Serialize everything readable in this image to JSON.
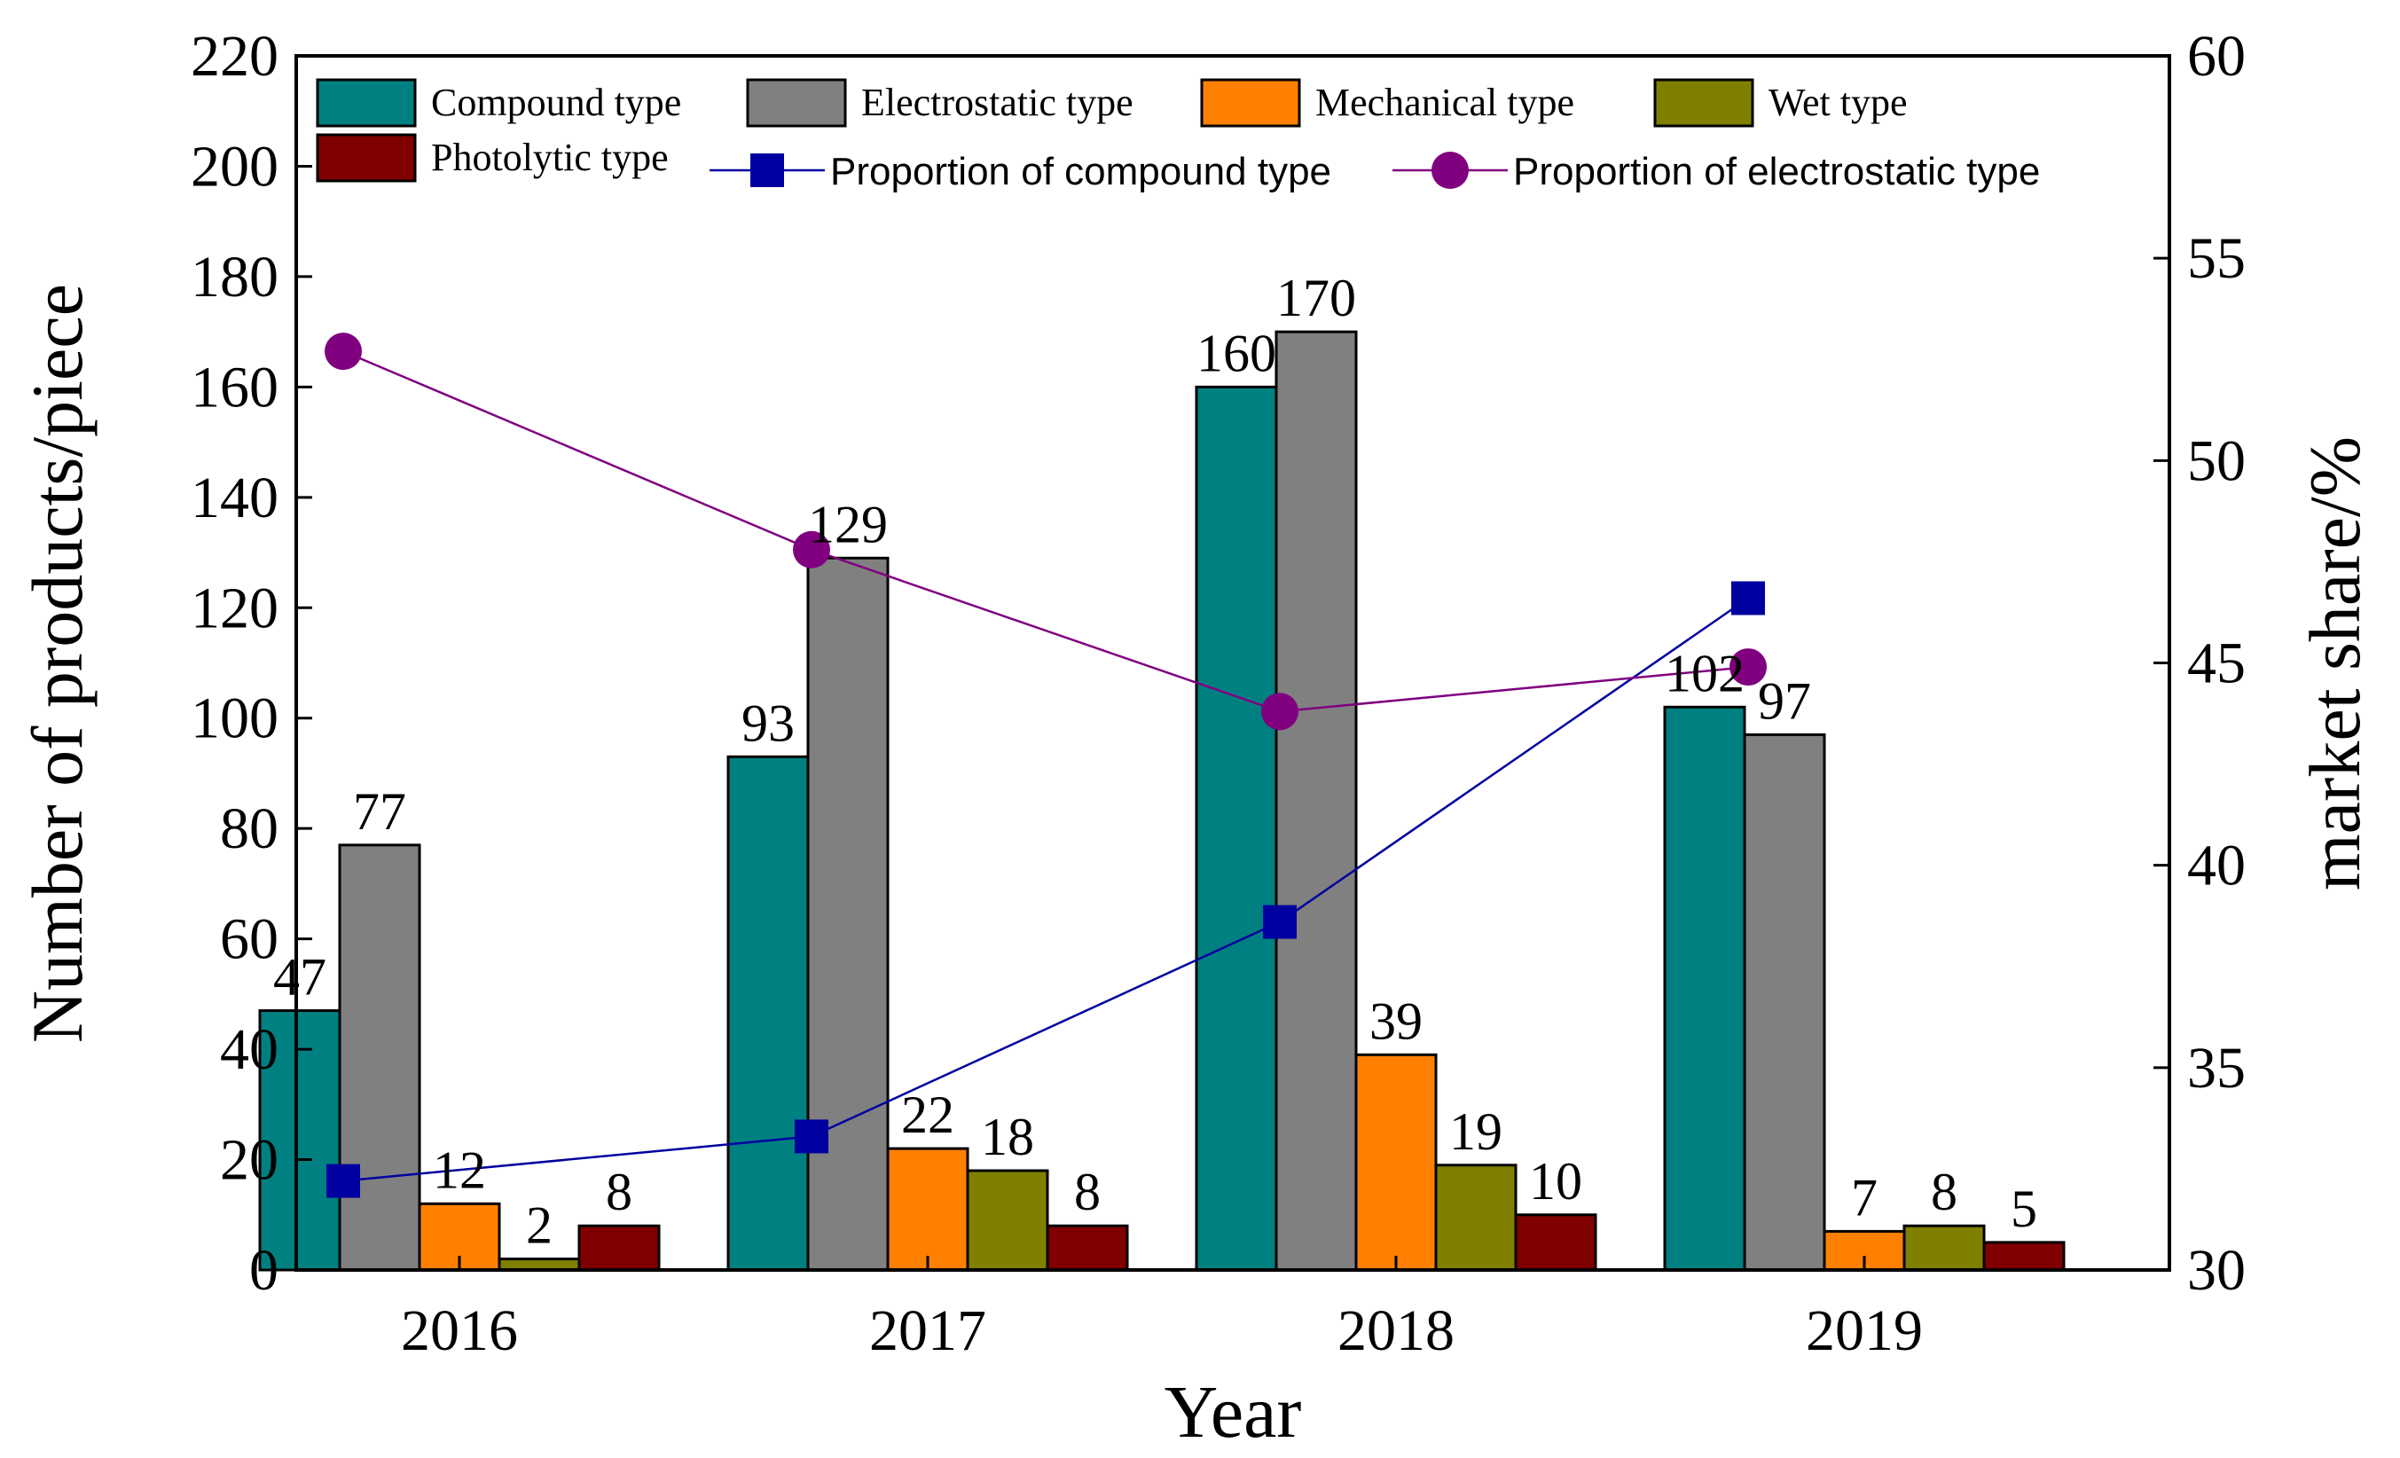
{
  "chart_data": {
    "type": "bar",
    "xlabel": "Year",
    "ylabel": "Number of products/piece",
    "y2label": "market share/%",
    "categories": [
      "2016",
      "2017",
      "2018",
      "2019"
    ],
    "ylim": [
      0,
      220
    ],
    "yticks": [
      0,
      20,
      40,
      60,
      80,
      100,
      120,
      140,
      160,
      180,
      200,
      220
    ],
    "y2lim": [
      30,
      60
    ],
    "y2ticks": [
      30,
      35,
      40,
      45,
      50,
      55,
      60
    ],
    "grid": false,
    "legend_placement": "top",
    "series": [
      {
        "name": "Compound type",
        "color": "#008080",
        "values": [
          47,
          93,
          160,
          102
        ],
        "labels": [
          "47",
          "93",
          "160",
          "102"
        ]
      },
      {
        "name": "Electrostatic type",
        "color": "#808080",
        "values": [
          77,
          129,
          170,
          97
        ],
        "labels": [
          "77",
          "129",
          "170",
          "97"
        ]
      },
      {
        "name": "Mechanical type",
        "color": "#ff8000",
        "values": [
          12,
          22,
          39,
          7
        ],
        "labels": [
          "12",
          "22",
          "39",
          "7"
        ]
      },
      {
        "name": "Wet type",
        "color": "#808000",
        "values": [
          2,
          18,
          19,
          8
        ],
        "labels": [
          "2",
          "18",
          "19",
          "8"
        ]
      },
      {
        "name": "Photolytic type",
        "color": "#800000",
        "values": [
          8,
          8,
          10,
          5
        ],
        "labels": [
          "8",
          "8",
          "10",
          "5"
        ]
      }
    ],
    "line_series": [
      {
        "name": "Proportion of compound type",
        "color": "#0000a0",
        "marker": "square",
        "axis": "right",
        "values": [
          32.2,
          33.3,
          38.6,
          46.6
        ]
      },
      {
        "name": "Proportion of electrostatic type",
        "color": "#800080",
        "marker": "circle",
        "axis": "right",
        "values": [
          52.7,
          47.8,
          43.8,
          44.9
        ]
      }
    ]
  }
}
